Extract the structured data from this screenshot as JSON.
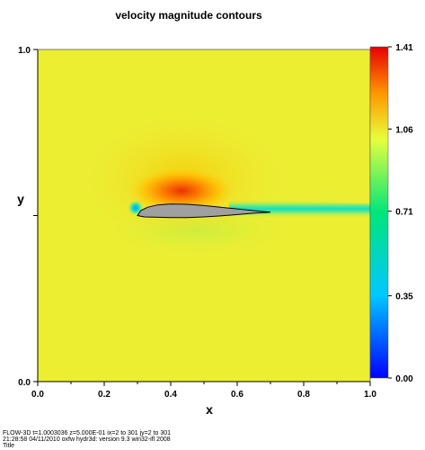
{
  "chart_data": {
    "type": "heatmap",
    "title": "velocity magnitude contours",
    "xlabel": "x",
    "ylabel": "y",
    "xlim": [
      0.0,
      1.0
    ],
    "ylim": [
      0.0,
      1.0
    ],
    "x_ticks": [
      "0.0",
      "0.2",
      "0.4",
      "0.6",
      "0.8",
      "1.0"
    ],
    "y_ticks": [
      "0.0",
      "1.0"
    ],
    "colorbar": {
      "min": 0.0,
      "max": 1.41,
      "ticks": [
        "1.41",
        "1.06",
        "0.71",
        "0.35",
        "0.00"
      ],
      "tick_values": [
        1.41,
        1.06,
        0.71,
        0.35,
        0.0
      ],
      "colors": [
        "#0000ff",
        "#00c8ff",
        "#00e67a",
        "#e6ff3c",
        "#ff9600",
        "#e60000"
      ]
    },
    "field": {
      "freestream_value": 1.0,
      "freestream_color": "#ecee32",
      "peak_value": 1.41,
      "peak_location": [
        0.43,
        0.54
      ],
      "wake_value": 0.8
    },
    "airfoil": {
      "leading_edge": [
        0.3,
        0.5
      ],
      "trailing_edge": [
        0.7,
        0.51
      ],
      "color": "#a0a0a0",
      "upper": [
        [
          0.3,
          0.5
        ],
        [
          0.31,
          0.515
        ],
        [
          0.33,
          0.525
        ],
        [
          0.36,
          0.532
        ],
        [
          0.4,
          0.535
        ],
        [
          0.45,
          0.534
        ],
        [
          0.5,
          0.53
        ],
        [
          0.55,
          0.525
        ],
        [
          0.6,
          0.52
        ],
        [
          0.65,
          0.515
        ],
        [
          0.7,
          0.51
        ]
      ],
      "lower": [
        [
          0.7,
          0.51
        ],
        [
          0.65,
          0.507
        ],
        [
          0.6,
          0.503
        ],
        [
          0.55,
          0.499
        ],
        [
          0.5,
          0.496
        ],
        [
          0.45,
          0.494
        ],
        [
          0.4,
          0.494
        ],
        [
          0.35,
          0.495
        ],
        [
          0.32,
          0.496
        ],
        [
          0.3,
          0.5
        ]
      ]
    }
  },
  "footer": {
    "line1": "FLOW-3D  t=1.0003036  z=5.000E-01  ix=2 to 301  jy=2 to 301",
    "line2": "21:28:58  04/11/2010  oxfw     hydr3d:  version  9.3   win32-ifl 2008",
    "line3": "Title"
  }
}
